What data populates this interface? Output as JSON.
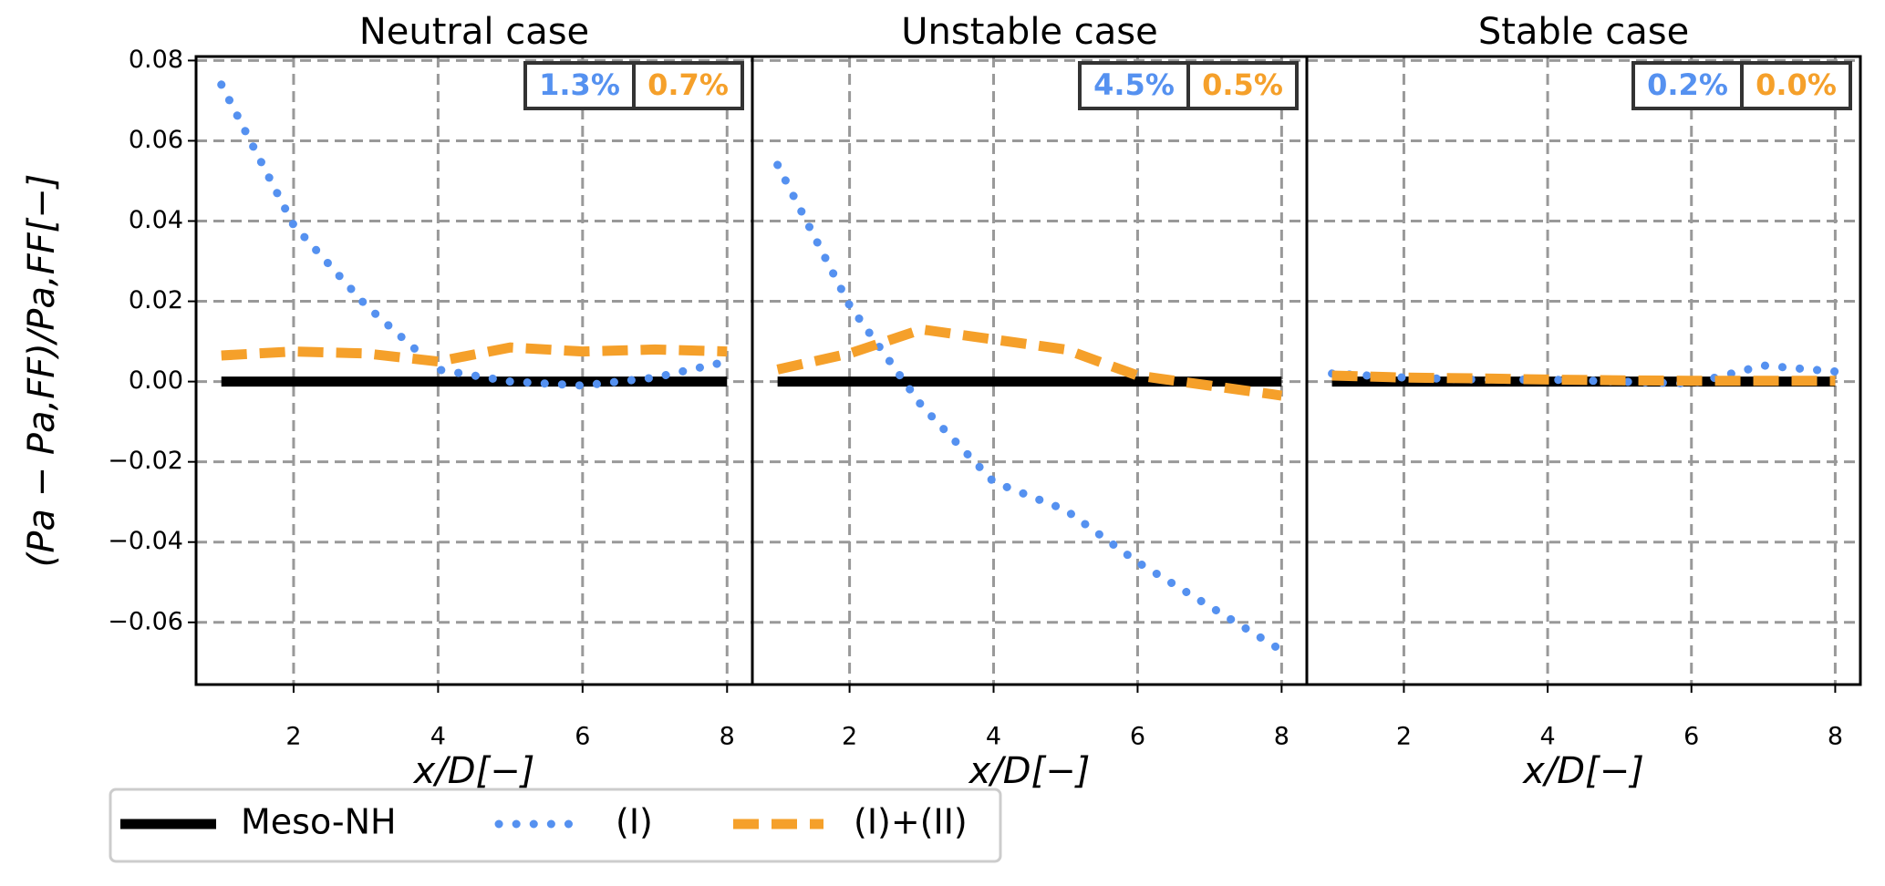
{
  "chart_data": [
    {
      "type": "line",
      "title": "Neutral case",
      "x_label": "x/D[−]",
      "y_label": "(Pa − Pa,FF)/Pa,FF[−]",
      "x": [
        1,
        2,
        3,
        4,
        5,
        6,
        7,
        8
      ],
      "series": [
        {
          "name": "Meso-NH",
          "color": "#000000",
          "values": [
            0,
            0,
            0,
            0,
            0,
            0,
            0,
            0
          ]
        },
        {
          "name": "(I)",
          "color": "#5591f0",
          "values": [
            0.074,
            0.039,
            0.019,
            0.003,
            0.0,
            -0.001,
            0.001,
            0.005
          ]
        },
        {
          "name": "(I)+(II)",
          "color": "#f5a02a",
          "values": [
            0.0065,
            0.0075,
            0.007,
            0.005,
            0.0085,
            0.0075,
            0.008,
            0.0075
          ]
        }
      ],
      "annotations": [
        {
          "text": "1.3%",
          "color": "#5591f0"
        },
        {
          "text": "0.7%",
          "color": "#f5a02a"
        }
      ],
      "xlim": [
        0.65,
        8.35
      ],
      "xticks": [
        2,
        4,
        6,
        8
      ],
      "ylim": [
        -0.0755,
        0.081
      ],
      "yticks": [
        0.08,
        0.06,
        0.04,
        0.02,
        {
          "value": 0,
          "label": "0.00"
        },
        {
          "value": -0.02,
          "label": "−0.02"
        },
        {
          "value": -0.04,
          "label": "−0.04"
        },
        {
          "value": -0.06,
          "label": "−0.06"
        }
      ],
      "grid": true
    },
    {
      "type": "line",
      "title": "Unstable case",
      "x_label": "x/D[−]",
      "x": [
        1,
        2,
        3,
        4,
        5,
        6,
        7,
        8
      ],
      "series": [
        {
          "name": "Meso-NH",
          "color": "#000000",
          "values": [
            0,
            0,
            0,
            0,
            0,
            0,
            0,
            0
          ]
        },
        {
          "name": "(I)",
          "color": "#5591f0",
          "values": [
            0.054,
            0.019,
            -0.006,
            -0.025,
            -0.032,
            -0.045,
            -0.056,
            -0.067
          ]
        },
        {
          "name": "(I)+(II)",
          "color": "#f5a02a",
          "values": [
            0.003,
            0.007,
            0.013,
            0.0105,
            0.008,
            0.0015,
            -0.001,
            -0.0035
          ]
        }
      ],
      "annotations": [
        {
          "text": "4.5%",
          "color": "#5591f0"
        },
        {
          "text": "0.5%",
          "color": "#f5a02a"
        }
      ],
      "xlim": [
        0.65,
        8.35
      ],
      "xticks": [
        2,
        4,
        6,
        8
      ],
      "ylim": [
        -0.0755,
        0.081
      ],
      "yticks": [
        0.08,
        0.06,
        0.04,
        0.02,
        0,
        -0.02,
        -0.04,
        -0.06
      ],
      "grid": true
    },
    {
      "type": "line",
      "title": "Stable case",
      "x_label": "x/D[−]",
      "x": [
        1,
        2,
        3,
        4,
        5,
        6,
        7,
        8
      ],
      "series": [
        {
          "name": "Meso-NH",
          "color": "#000000",
          "values": [
            0,
            0,
            0,
            0,
            0,
            0,
            0,
            0
          ]
        },
        {
          "name": "(I)",
          "color": "#5591f0",
          "values": [
            0.002,
            0.001,
            0.0005,
            0.0005,
            0.0,
            -0.0005,
            0.004,
            0.0025
          ]
        },
        {
          "name": "(I)+(II)",
          "color": "#f5a02a",
          "values": [
            0.0015,
            0.001,
            0.0008,
            0.0005,
            0.0003,
            0.0002,
            0.0002,
            0.0002
          ]
        }
      ],
      "annotations": [
        {
          "text": "0.2%",
          "color": "#5591f0"
        },
        {
          "text": "0.0%",
          "color": "#f5a02a"
        }
      ],
      "xlim": [
        0.65,
        8.35
      ],
      "xticks": [
        2,
        4,
        6,
        8
      ],
      "ylim": [
        -0.0755,
        0.081
      ],
      "yticks": [
        0.08,
        0.06,
        0.04,
        0.02,
        0,
        -0.02,
        -0.04,
        -0.06
      ],
      "grid": true
    }
  ]
}
